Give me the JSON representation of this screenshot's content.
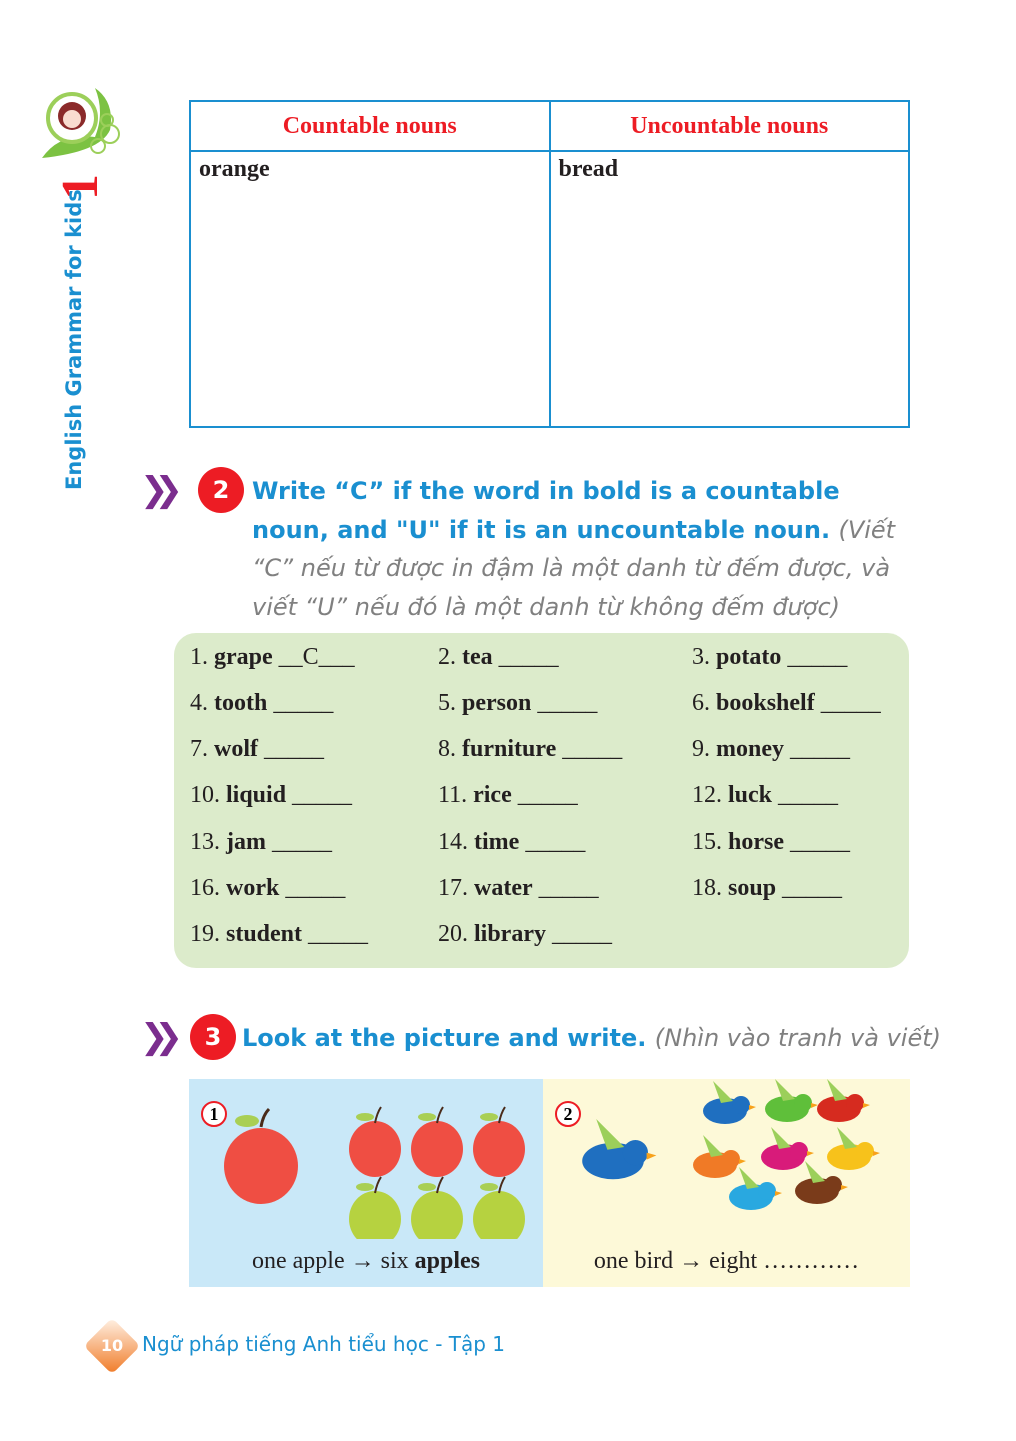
{
  "sidebar": {
    "series_title": "English Grammar for kids",
    "volume": "1",
    "logo_icon": "girl-avatar-logo"
  },
  "table": {
    "headers": [
      "Countable nouns",
      "Uncountable nouns"
    ],
    "cells": [
      "orange",
      "bread"
    ]
  },
  "exercise2": {
    "number": "2",
    "instruction": "Write “C” if the word in bold is a countable noun, and \"U\" if it is an uncountable noun.",
    "translation": "(Viết “C” nếu từ được in đậm là một danh từ đếm được, và viết “U” nếu đó là một danh từ không đếm được)",
    "items": [
      {
        "n": "1.",
        "w": "grape",
        "a": "__C___"
      },
      {
        "n": "2.",
        "w": "tea",
        "a": "_____"
      },
      {
        "n": "3.",
        "w": "potato",
        "a": "_____"
      },
      {
        "n": "4.",
        "w": "tooth",
        "a": "_____"
      },
      {
        "n": "5.",
        "w": "person",
        "a": "_____"
      },
      {
        "n": "6.",
        "w": "bookshelf",
        "a": "_____"
      },
      {
        "n": "7.",
        "w": "wolf",
        "a": "_____"
      },
      {
        "n": "8.",
        "w": "furniture",
        "a": "_____"
      },
      {
        "n": "9.",
        "w": "money",
        "a": "_____"
      },
      {
        "n": "10.",
        "w": "liquid",
        "a": "_____"
      },
      {
        "n": "11.",
        "w": "rice",
        "a": "_____"
      },
      {
        "n": "12.",
        "w": "luck",
        "a": "_____"
      },
      {
        "n": "13.",
        "w": "jam",
        "a": "_____"
      },
      {
        "n": "14.",
        "w": "time",
        "a": "_____"
      },
      {
        "n": "15.",
        "w": "horse",
        "a": "_____"
      },
      {
        "n": "16.",
        "w": "work",
        "a": "_____"
      },
      {
        "n": "17.",
        "w": "water",
        "a": "_____"
      },
      {
        "n": "18.",
        "w": "soup",
        "a": "_____"
      },
      {
        "n": "19. ",
        "w": "student",
        "a": "_____"
      },
      {
        "n": "20.",
        "w": "library",
        "a": "_____"
      }
    ]
  },
  "exercise3": {
    "number": "3",
    "instruction": "Look at the picture and write.",
    "translation": "(Nhìn vào tranh và viết)",
    "pictures": [
      {
        "label": "1",
        "caption_plain": "one apple → six ",
        "caption_bold": "apples",
        "bg": "#c9e8f8"
      },
      {
        "label": "2",
        "caption_plain": "one bird → eight ",
        "caption_bold": "",
        "caption_blank": "…………",
        "bg": "#fdf9d8"
      }
    ]
  },
  "footer": {
    "page": "10",
    "book_title": "Ngữ pháp tiếng Anh tiểu học - Tập 1"
  },
  "colors": {
    "blue": "#1a8fd0",
    "red": "#ed1c24",
    "purple": "#7b2d8e",
    "green_box": "#dcebcb"
  }
}
